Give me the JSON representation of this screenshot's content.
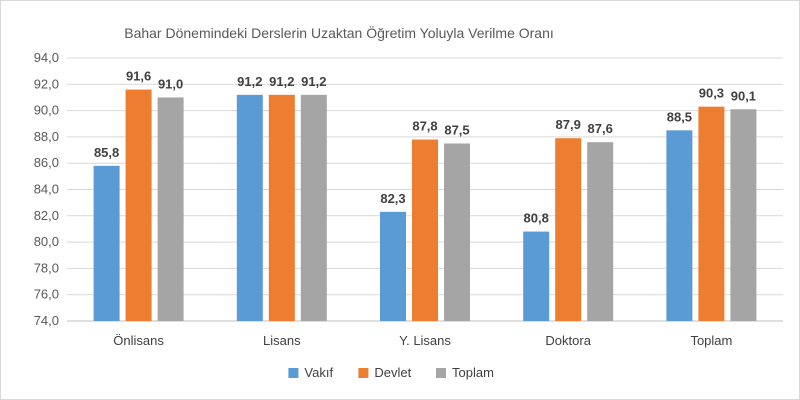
{
  "chart_data": {
    "type": "bar",
    "title": "Bahar Dönemindeki Derslerin Uzaktan Öğretim Yoluyla Verilme Oranı",
    "xlabel": "",
    "ylabel": "",
    "categories": [
      "Önlisans",
      "Lisans",
      "Y. Lisans",
      "Doktora",
      "Toplam"
    ],
    "series": [
      {
        "name": "Vakıf",
        "color": "#5b9bd5",
        "values": [
          85.8,
          91.2,
          82.3,
          80.8,
          88.5
        ]
      },
      {
        "name": "Devlet",
        "color": "#ed7d31",
        "values": [
          91.6,
          91.2,
          87.8,
          87.9,
          90.3
        ]
      },
      {
        "name": "Toplam",
        "color": "#a5a5a5",
        "values": [
          91.0,
          91.2,
          87.5,
          87.6,
          90.1
        ]
      }
    ],
    "ylim": [
      74.0,
      94.0
    ],
    "ytick_step": 2,
    "ytick_labels": [
      "74,0",
      "76,0",
      "78,0",
      "80,0",
      "82,0",
      "84,0",
      "86,0",
      "88,0",
      "90,0",
      "92,0",
      "94,0"
    ],
    "data_labels": [
      [
        "85,8",
        "91,2",
        "82,3",
        "80,8",
        "88,5"
      ],
      [
        "91,6",
        "91,2",
        "87,8",
        "87,9",
        "90,3"
      ],
      [
        "91,0",
        "91,2",
        "87,5",
        "87,6",
        "90,1"
      ]
    ],
    "grid": true,
    "legend_position": "bottom"
  }
}
